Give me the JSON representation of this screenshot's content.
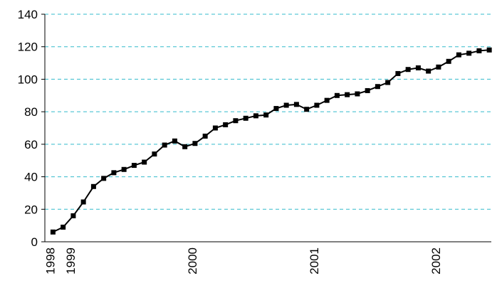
{
  "chart_data": {
    "type": "line",
    "categories": [
      "1998",
      null,
      "1999",
      null,
      null,
      null,
      null,
      null,
      null,
      null,
      null,
      null,
      null,
      null,
      "2000",
      null,
      null,
      null,
      null,
      null,
      null,
      null,
      null,
      null,
      null,
      null,
      "2001",
      null,
      null,
      null,
      null,
      null,
      null,
      null,
      null,
      null,
      null,
      null,
      "2002",
      null,
      null,
      null,
      null,
      null
    ],
    "values": [
      6,
      9,
      16,
      24.5,
      34,
      39,
      42.5,
      44.5,
      47,
      49,
      54,
      59.5,
      62,
      58.5,
      60.5,
      65,
      70,
      72,
      74.5,
      76,
      77.5,
      78,
      82,
      84,
      84.5,
      81.5,
      84,
      87,
      90,
      90.5,
      91,
      93,
      95.5,
      98,
      103.5,
      106,
      107,
      105,
      107.5,
      111,
      115,
      116,
      117.5,
      118
    ],
    "color": "#000000",
    "ylim": [
      0,
      140
    ],
    "yticks": [
      0,
      20,
      40,
      60,
      80,
      100,
      120,
      140
    ],
    "grid": true
  }
}
